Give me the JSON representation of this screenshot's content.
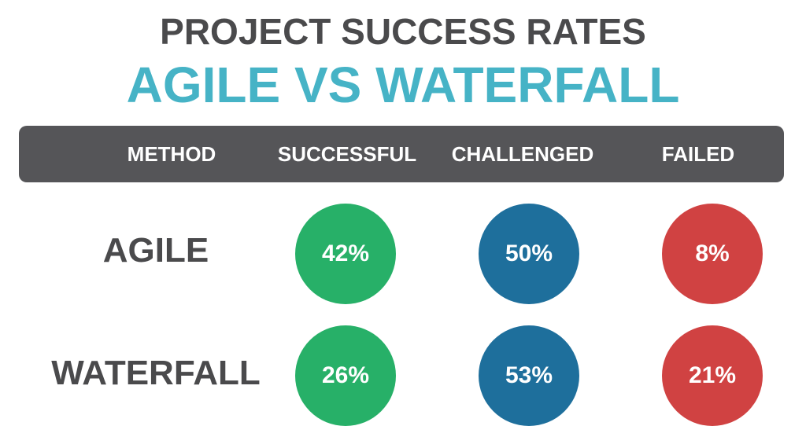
{
  "chart_data": {
    "type": "table",
    "title": "PROJECT SUCCESS RATES",
    "subtitle": "AGILE VS WATERFALL",
    "columns": [
      "METHOD",
      "SUCCESSFUL",
      "CHALLENGED",
      "FAILED"
    ],
    "rows": [
      {
        "method": "AGILE",
        "values": [
          "42%",
          "50%",
          "8%"
        ]
      },
      {
        "method": "WATERFALL",
        "values": [
          "26%",
          "53%",
          "21%"
        ]
      }
    ],
    "colors": {
      "successful": "#27b068",
      "challenged": "#1e6f9c",
      "failed": "#d04242",
      "title": "#4a4a4c",
      "subtitle": "#46b3c6",
      "header_bg": "#555558"
    }
  }
}
